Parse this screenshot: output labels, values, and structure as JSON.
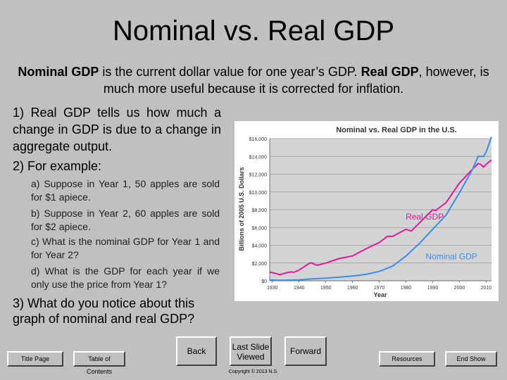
{
  "slide": {
    "title": "Nominal vs. Real GDP",
    "intro": {
      "term1": "Nominal GDP",
      "text1": " is the current dollar value for one year’s GDP.  ",
      "term2": "Real GDP",
      "text2": ", however, is much more useful because it is corrected for inflation."
    },
    "point1": "1) Real GDP tells us how much a change in GDP is due to a change in aggregate output.",
    "point2": "2) For example:",
    "sub_a": "a) Suppose in Year 1, 50 apples are sold for $1 apiece.",
    "sub_b": "b) Suppose in Year 2, 60 apples are sold for $2 apiece.",
    "sub_c": "c) What is the nominal GDP for Year 1 and for Year 2?",
    "sub_d": "d) What is the GDP for each year if we only use the price from Year 1?",
    "point3": "3) What do you notice about this graph of nominal and real GDP?"
  },
  "nav": {
    "title_page": "Title Page",
    "toc": "Table of Contents",
    "back": "Back",
    "last_slide": "Last Slide Viewed",
    "forward": "Forward",
    "resources": "Resources",
    "end_show": "End Show",
    "copyright": "Copyright © 2013 N.S."
  },
  "colors": {
    "real_gdp": "#e0189e",
    "nominal_gdp": "#3a8ee8",
    "plot_bg": "#d4d4d4"
  },
  "chart_data": {
    "type": "line",
    "title": "Nominal vs. Real GDP in the U.S.",
    "xlabel": "Year",
    "ylabel": "Billions of 2005 U.S. Dollars",
    "xlim": [
      1929,
      2012
    ],
    "ylim": [
      0,
      16000
    ],
    "x_ticks": [
      "1930",
      "1940",
      "1950",
      "1960",
      "1970",
      "1980",
      "1990",
      "2000",
      "2010"
    ],
    "y_ticks": [
      "$0",
      "$2,000",
      "$4,000",
      "$6,000",
      "$8,000",
      "$10,000",
      "$12,000",
      "$14,000",
      "$16,000"
    ],
    "series": [
      {
        "name": "Real GDP",
        "x": [
          1929,
          1930,
          1931,
          1932,
          1933,
          1934,
          1936,
          1937,
          1938,
          1940,
          1942,
          1944,
          1945,
          1946,
          1947,
          1950,
          1955,
          1960,
          1965,
          1970,
          1973,
          1975,
          1980,
          1982,
          1985,
          1990,
          1991,
          1995,
          2000,
          2005,
          2007,
          2008,
          2009,
          2010,
          2012
        ],
        "y": [
          1000,
          900,
          850,
          750,
          700,
          800,
          950,
          1000,
          950,
          1200,
          1600,
          2000,
          2000,
          1800,
          1750,
          2000,
          2500,
          2800,
          3600,
          4300,
          5000,
          5000,
          5800,
          5600,
          6500,
          8000,
          7900,
          8800,
          11000,
          12600,
          13200,
          13100,
          12800,
          13100,
          13600
        ]
      },
      {
        "name": "Nominal GDP",
        "x": [
          1929,
          1932,
          1933,
          1936,
          1940,
          1945,
          1950,
          1955,
          1960,
          1965,
          1970,
          1975,
          1980,
          1985,
          1990,
          1995,
          2000,
          2005,
          2007,
          2009,
          2010,
          2012
        ],
        "y": [
          100,
          60,
          55,
          80,
          100,
          220,
          300,
          400,
          530,
          720,
          1050,
          1650,
          2800,
          4200,
          5800,
          7400,
          9900,
          12600,
          14000,
          14000,
          14500,
          16200
        ]
      }
    ],
    "annotations": [
      "Real GDP",
      "Nominal GDP"
    ],
    "grid": true,
    "legend": "none"
  }
}
